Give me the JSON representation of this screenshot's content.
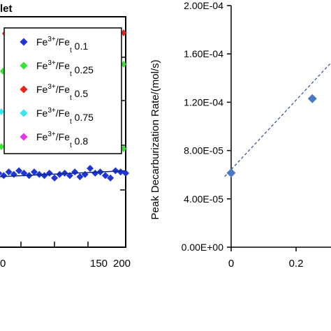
{
  "left_panel": {
    "title_fragment": "let",
    "x_ticks": [
      150,
      200
    ],
    "x_tick_left_fragment": "",
    "legend": [
      {
        "prefix": "Fe",
        "sup": "3+",
        "mid": "/Fe",
        "sub": "t",
        "value": "0.1",
        "color": "#1f35d6",
        "marker": "diamond"
      },
      {
        "prefix": "Fe",
        "sup": "3+",
        "mid": "/Fe",
        "sub": "t",
        "value": "0.25",
        "color": "#33e633",
        "marker": "diamond"
      },
      {
        "prefix": "Fe",
        "sup": "3+",
        "mid": "/Fe",
        "sub": "t",
        "value": "0.5",
        "color": "#e8231c",
        "marker": "diamond"
      },
      {
        "prefix": "Fe",
        "sup": "3+",
        "mid": "/Fe",
        "sub": "t",
        "value": "0.75",
        "color": "#33e6f0",
        "marker": "diamond"
      },
      {
        "prefix": "Fe",
        "sup": "3+",
        "mid": "/Fe",
        "sub": "t",
        "value": "0.8",
        "color": "#e833e0",
        "marker": "diamond"
      }
    ]
  },
  "chart_data": [
    {
      "type": "scatter",
      "title": "",
      "xlabel": "",
      "ylabel": "",
      "xlim": [
        100,
        200
      ],
      "series": [
        {
          "name": "Fe3+/Fet 0.1",
          "color": "#1f35d6",
          "x": [
            100,
            104,
            108,
            112,
            116,
            120,
            124,
            128,
            132,
            136,
            140,
            144,
            148,
            152,
            156,
            160,
            164,
            168,
            172,
            176,
            180,
            184,
            188,
            192,
            196,
            200
          ],
          "y": [
            0.62,
            0.6,
            0.63,
            0.61,
            0.64,
            0.62,
            0.6,
            0.63,
            0.61,
            0.6,
            0.62,
            0.58,
            0.61,
            0.62,
            0.6,
            0.63,
            0.59,
            0.61,
            0.66,
            0.62,
            0.63,
            0.6,
            0.58,
            0.64,
            0.63,
            0.62
          ]
        }
      ],
      "trend": {
        "from": [
          100,
          0.59
        ],
        "to": [
          200,
          0.64
        ]
      }
    },
    {
      "type": "scatter",
      "title": "",
      "xlabel": "",
      "ylabel": "Peak Decarburization Rate/(mol/s)",
      "ylim": [
        0,
        0.0002
      ],
      "yticks": [
        "0.00E+00",
        "4.00E-05",
        "8.00E-05",
        "1.20E-04",
        "1.60E-04",
        "2.00E-04"
      ],
      "ytick_values": [
        0,
        4e-05,
        8e-05,
        0.00012,
        0.00016,
        0.0002
      ],
      "xticks": [
        "0",
        "0.2"
      ],
      "xtick_values": [
        0,
        0.2
      ],
      "series": [
        {
          "name": "",
          "color": "#4a78c2",
          "x": [
            0,
            0.25
          ],
          "y": [
            6.15e-05,
            0.000123
          ]
        }
      ],
      "trend": {
        "style": "dashed",
        "color": "#2c4f8f",
        "from": [
          -0.02,
          5.85e-05
        ],
        "to": [
          0.42,
          0.000185
        ]
      }
    }
  ]
}
